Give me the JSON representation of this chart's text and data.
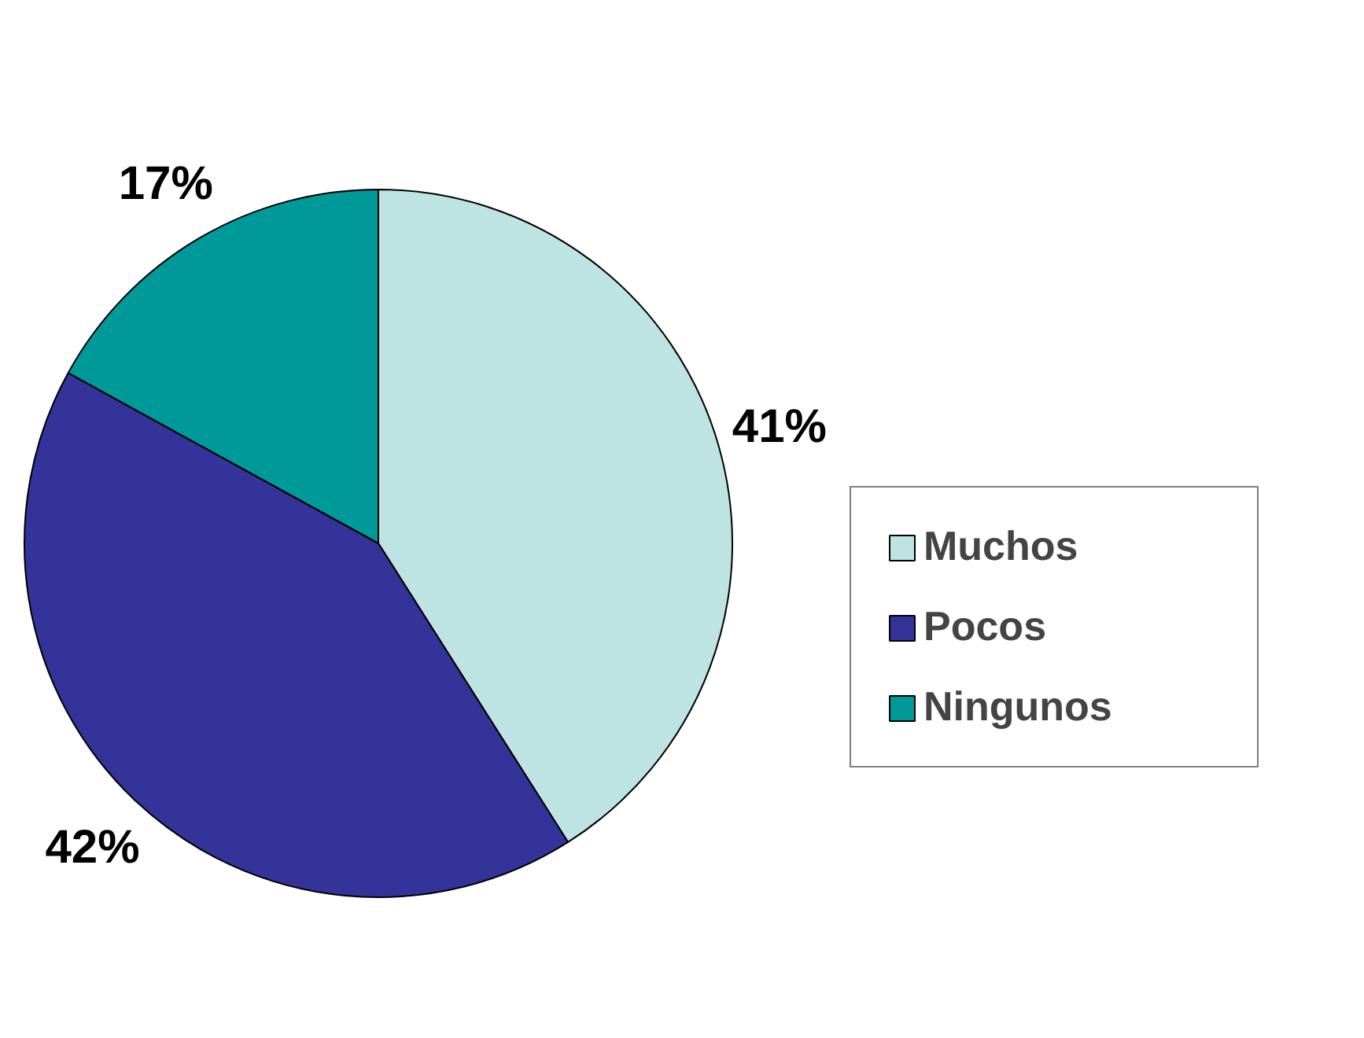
{
  "chart_data": {
    "type": "pie",
    "categories": [
      "Muchos",
      "Pocos",
      "Ningunos"
    ],
    "values": [
      41,
      42,
      17
    ],
    "colors": [
      "#bde3e3",
      "#333399",
      "#009999"
    ],
    "value_labels": [
      "41%",
      "42%",
      "17%"
    ],
    "legend": "right"
  }
}
